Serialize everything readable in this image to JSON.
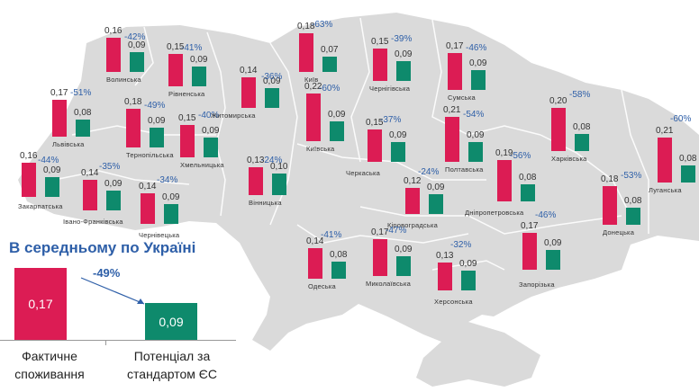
{
  "colors": {
    "actual": "#DC1C54",
    "potential": "#0E8A6C",
    "percent_text": "#2E5FA8",
    "map_fill": "#DADADA"
  },
  "legend": {
    "actual_label": "Фактичне споживання",
    "potential_label": "Потенціал за стандартом ЄС"
  },
  "average": {
    "title": "В середньому по Україні",
    "actual": "0,17",
    "potential": "0,09",
    "change": "-49%",
    "actual_label_line1": "Фактичне",
    "actual_label_line2": "споживання",
    "potential_label_line1": "Потенціал за",
    "potential_label_line2": "стандартом ЄС"
  },
  "regions": [
    {
      "name": "Волинська",
      "actual": "0,16",
      "potential": "0,09",
      "change": "-42%"
    },
    {
      "name": "Рівненська",
      "actual": "0,15",
      "potential": "0,09",
      "change": "-41%"
    },
    {
      "name": "Львівська",
      "actual": "0,17",
      "potential": "0,08",
      "change": "-51%"
    },
    {
      "name": "Тернопільська",
      "actual": "0,18",
      "potential": "0,09",
      "change": "-49%"
    },
    {
      "name": "Хмельницька",
      "actual": "0,15",
      "potential": "0,09",
      "change": "-40%"
    },
    {
      "name": "Закарпатська",
      "actual": "0,16",
      "potential": "0,09",
      "change": "-44%"
    },
    {
      "name": "Івано-Франківська",
      "actual": "0,14",
      "potential": "0,09",
      "change": "-35%"
    },
    {
      "name": "Чернівецька",
      "actual": "0,14",
      "potential": "0,09",
      "change": "-34%"
    },
    {
      "name": "Житомирська",
      "actual": "0,14",
      "potential": "0,09",
      "change": "-36%"
    },
    {
      "name": "Вінницька",
      "actual": "0,13",
      "potential": "0,10",
      "change": "-24%"
    },
    {
      "name": "Київ",
      "actual": "0,18",
      "potential": "0,07",
      "change": "-63%"
    },
    {
      "name": "Київська",
      "actual": "0,22",
      "potential": "0,09",
      "change": "-60%"
    },
    {
      "name": "Чернігівська",
      "actual": "0,15",
      "potential": "0,09",
      "change": "-39%"
    },
    {
      "name": "Сумська",
      "actual": "0,17",
      "potential": "0,09",
      "change": "-46%"
    },
    {
      "name": "Черкаська",
      "actual": "0,15",
      "potential": "0,09",
      "change": "-37%"
    },
    {
      "name": "Полтавська",
      "actual": "0,21",
      "potential": "0,09",
      "change": "-54%"
    },
    {
      "name": "Кіровоградська",
      "actual": "0,12",
      "potential": "0,09",
      "change": "-24%"
    },
    {
      "name": "Харківська",
      "actual": "0,20",
      "potential": "0,08",
      "change": "-58%"
    },
    {
      "name": "Луганська",
      "actual": "0,21",
      "potential": "0,08",
      "change": "-60%"
    },
    {
      "name": "Дніпропетровська",
      "actual": "0,19",
      "potential": "0,08",
      "change": "-56%"
    },
    {
      "name": "Донецька",
      "actual": "0,18",
      "potential": "0,08",
      "change": "-53%"
    },
    {
      "name": "Запорізька",
      "actual": "0,17",
      "potential": "0,09",
      "change": "-46%"
    },
    {
      "name": "Одеська",
      "actual": "0,14",
      "potential": "0,08",
      "change": "-41%"
    },
    {
      "name": "Миколаївська",
      "actual": "0,17",
      "potential": "0,09",
      "change": "-47%"
    },
    {
      "name": "Херсонська",
      "actual": "0,13",
      "potential": "0,09",
      "change": "-32%"
    }
  ],
  "chart_data": {
    "type": "bar",
    "title": "В середньому по Україні",
    "series_names": [
      "Фактичне споживання",
      "Потенціал за стандартом ЄС"
    ],
    "categories": [
      "Волинська",
      "Рівненська",
      "Львівська",
      "Тернопільська",
      "Хмельницька",
      "Закарпатська",
      "Івано-Франківська",
      "Чернівецька",
      "Житомирська",
      "Вінницька",
      "Київ",
      "Київська",
      "Чернігівська",
      "Сумська",
      "Черкаська",
      "Полтавська",
      "Кіровоградська",
      "Харківська",
      "Луганська",
      "Дніпропетровська",
      "Донецька",
      "Запорізька",
      "Одеська",
      "Миколаївська",
      "Херсонська"
    ],
    "series": [
      {
        "name": "Фактичне споживання",
        "values": [
          0.16,
          0.15,
          0.17,
          0.18,
          0.15,
          0.16,
          0.14,
          0.14,
          0.14,
          0.13,
          0.18,
          0.22,
          0.15,
          0.17,
          0.15,
          0.21,
          0.12,
          0.2,
          0.21,
          0.19,
          0.18,
          0.17,
          0.14,
          0.17,
          0.13
        ]
      },
      {
        "name": "Потенціал за стандартом ЄС",
        "values": [
          0.09,
          0.09,
          0.08,
          0.09,
          0.09,
          0.09,
          0.09,
          0.09,
          0.09,
          0.1,
          0.07,
          0.09,
          0.09,
          0.09,
          0.09,
          0.09,
          0.09,
          0.08,
          0.08,
          0.08,
          0.08,
          0.09,
          0.08,
          0.09,
          0.09
        ]
      }
    ],
    "change_pct": [
      -42,
      -41,
      -51,
      -49,
      -40,
      -44,
      -35,
      -34,
      -36,
      -24,
      -63,
      -60,
      -39,
      -46,
      -37,
      -54,
      -24,
      -58,
      -60,
      -56,
      -53,
      -46,
      -41,
      -47,
      -32
    ],
    "average": {
      "actual": 0.17,
      "potential": 0.09,
      "change_pct": -49
    },
    "xlabel": "",
    "ylabel": ""
  }
}
